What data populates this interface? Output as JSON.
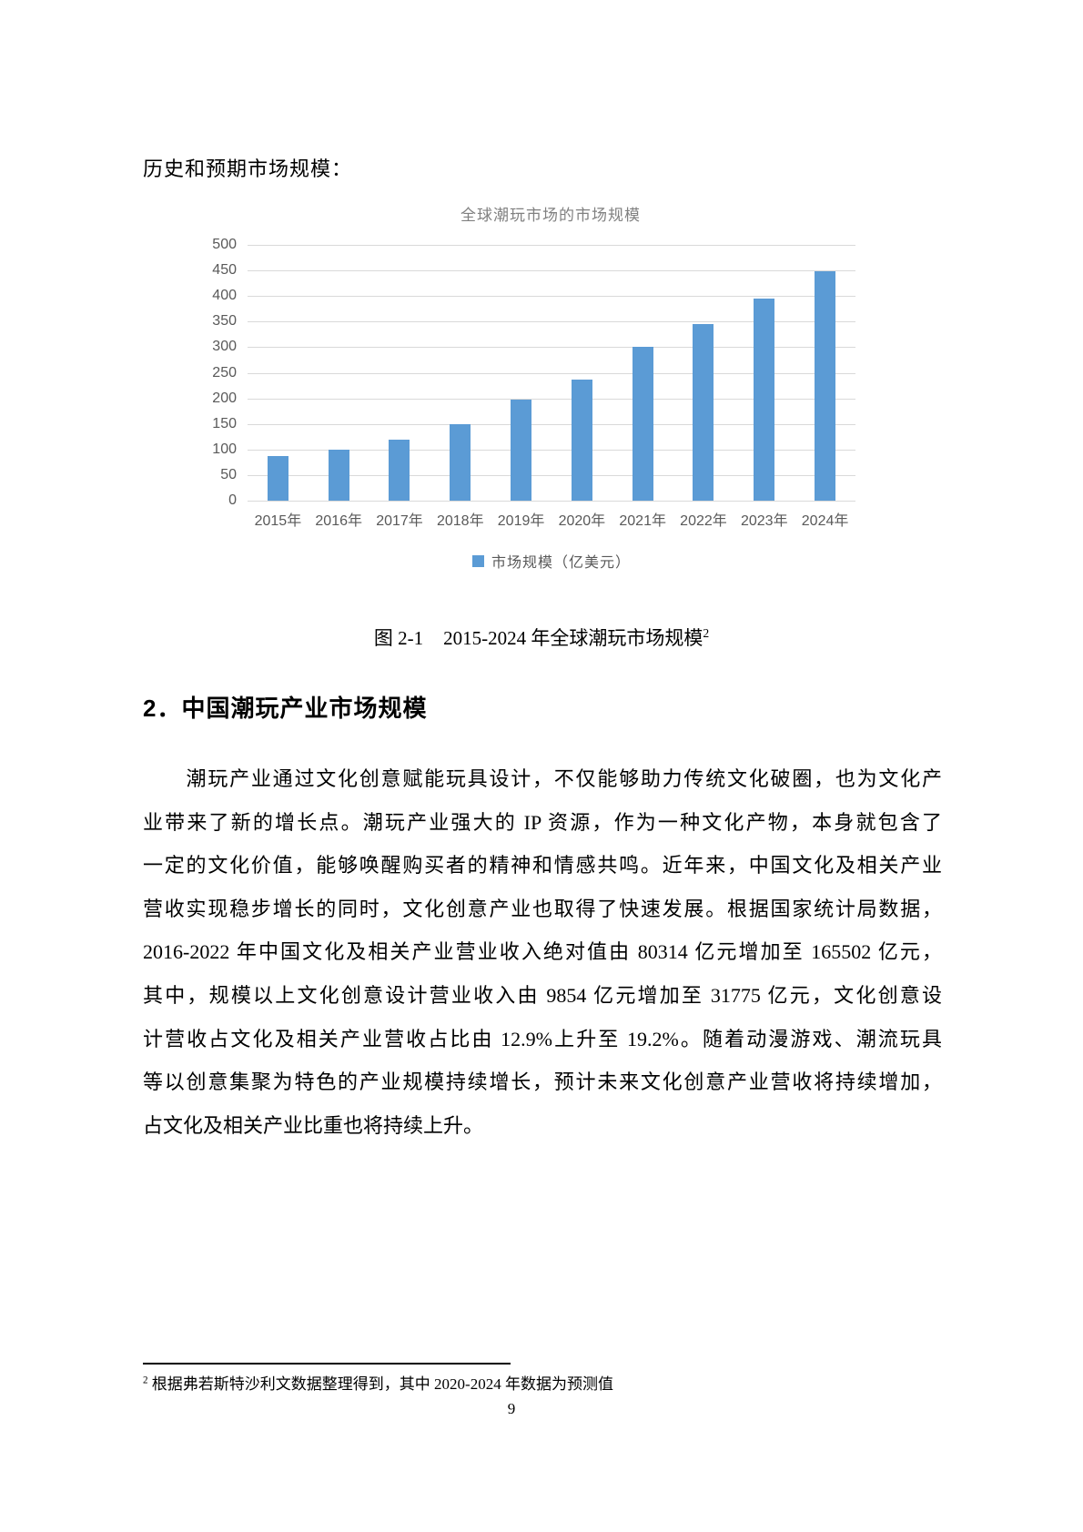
{
  "page": {
    "intro": "历史和预期市场规模：",
    "caption": {
      "label": "图 2-1",
      "text": "2015-2024 年全球潮玩市场规模",
      "superscript": "2"
    },
    "heading": "2．中国潮玩产业市场规模",
    "paragraph_lines": [
      "　　潮玩产业通过文化创意赋能玩具设计，不仅能够助力传统文化破圈，也为文化产",
      "业带来了新的增长点。潮玩产业强大的 IP 资源，作为一种文化产物，本身就包含了",
      "一定的文化价值，能够唤醒购买者的精神和情感共鸣。近年来，中国文化及相关产业",
      "营收实现稳步增长的同时，文化创意产业也取得了快速发展。根据国家统计局数据，",
      "2016-2022 年中国文化及相关产业营业收入绝对值由 80314 亿元增加至 165502 亿元，",
      "其中，规模以上文化创意设计营业收入由 9854 亿元增加至 31775 亿元，文化创意设",
      "计营收占文化及相关产业营收占比由 12.9%上升至 19.2%。随着动漫游戏、潮流玩具",
      "等以创意集聚为特色的产业规模持续增长，预计未来文化创意产业营收将持续增加，",
      "占文化及相关产业比重也将持续上升。"
    ],
    "footnote": {
      "marker": "2",
      "text": "根据弗若斯特沙利文数据整理得到，其中 2020-2024 年数据为预测值"
    },
    "page_number": "9"
  },
  "chart_data": {
    "type": "bar",
    "title": "全球潮玩市场的市场规模",
    "categories": [
      "2015年",
      "2016年",
      "2017年",
      "2018年",
      "2019年",
      "2020年",
      "2021年",
      "2022年",
      "2023年",
      "2024年"
    ],
    "values": [
      87,
      100,
      120,
      150,
      198,
      237,
      300,
      345,
      395,
      448
    ],
    "legend": "市场规模（亿美元）",
    "xlabel": "",
    "ylabel": "",
    "ylim": [
      0,
      500
    ],
    "ytick_step": 50,
    "bar_color": "#5b9bd5",
    "gridline_color": "#d9d9d9",
    "tick_label_color": "#595959",
    "title_color": "#808080",
    "grid": true,
    "legend_position": "bottom"
  }
}
